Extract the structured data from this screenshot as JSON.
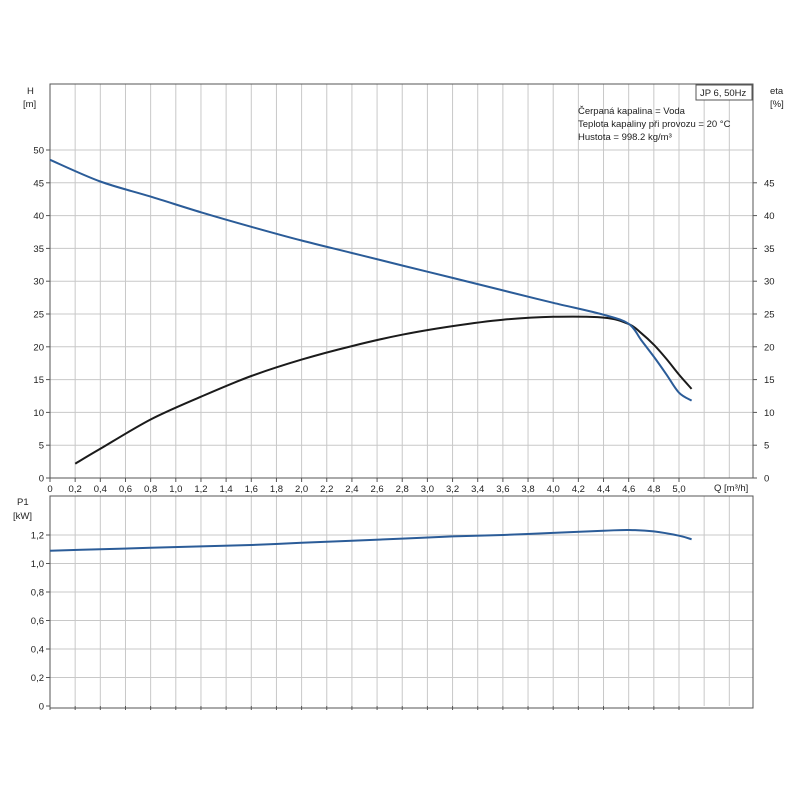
{
  "colors": {
    "head_curve": "#2b5c98",
    "eta_curve": "#1b1b1b",
    "power_curve": "#2b5c98",
    "grid": "#c8c8c8",
    "frame": "#555555"
  },
  "chart_data": [
    {
      "type": "line",
      "ylabel": "H",
      "ylabel_unit": "[m]",
      "y2label": "eta",
      "y2label_unit": "[%]",
      "xlabel": "Q [m³/h]",
      "xlim": [
        0,
        5.6
      ],
      "ylim": [
        0,
        50
      ],
      "y2lim": [
        0,
        45
      ],
      "x_ticks": [
        "0",
        "0,2",
        "0,4",
        "0,6",
        "0,8",
        "1,0",
        "1,2",
        "1,4",
        "1,6",
        "1,8",
        "2,0",
        "2,2",
        "2,4",
        "2,6",
        "2,8",
        "3,0",
        "3,2",
        "3,4",
        "3,6",
        "3,8",
        "4,0",
        "4,2",
        "4,4",
        "4,6",
        "4,8",
        "5,0"
      ],
      "y_ticks": [
        "0",
        "5",
        "10",
        "15",
        "20",
        "25",
        "30",
        "35",
        "40",
        "45",
        "50"
      ],
      "y2_ticks": [
        "0",
        "5",
        "10",
        "15",
        "20",
        "25",
        "30",
        "35",
        "40",
        "45"
      ],
      "grid": true,
      "legend": {
        "title": "JP 6, 50Hz",
        "lines": [
          "Čerpaná kapalina = Voda",
          "Teplota kapaliny při provozu = 20 °C",
          "Hustota = 998.2 kg/m³"
        ],
        "placement": "top-right"
      },
      "series": [
        {
          "key": "head",
          "axis": "left",
          "x": [
            0,
            0.4,
            0.8,
            1.2,
            1.6,
            2.0,
            2.4,
            2.8,
            3.2,
            3.6,
            4.0,
            4.4,
            4.6,
            4.7,
            4.8,
            4.9,
            5.0,
            5.1
          ],
          "values": [
            48.5,
            45.2,
            42.9,
            40.5,
            38.3,
            36.2,
            34.3,
            32.4,
            30.5,
            28.6,
            26.7,
            24.9,
            23.5,
            21.0,
            18.5,
            15.8,
            13.0,
            11.8
          ]
        },
        {
          "key": "eta",
          "axis": "right",
          "x": [
            0.2,
            0.4,
            0.8,
            1.2,
            1.6,
            2.0,
            2.4,
            2.8,
            3.2,
            3.6,
            4.0,
            4.4,
            4.6,
            4.7,
            4.8,
            4.9,
            5.0,
            5.1
          ],
          "values": [
            2.0,
            4.1,
            8.2,
            11.4,
            14.3,
            16.6,
            18.5,
            20.1,
            21.3,
            22.2,
            22.6,
            22.5,
            21.6,
            20.3,
            18.7,
            16.7,
            14.5,
            12.5
          ]
        }
      ]
    },
    {
      "type": "line",
      "ylabel": "P1",
      "ylabel_unit": "[kW]",
      "xlim": [
        0,
        5.6
      ],
      "ylim": [
        0,
        1.4
      ],
      "y_ticks": [
        "0",
        "0,2",
        "0,4",
        "0,6",
        "0,8",
        "1,0",
        "1,2"
      ],
      "grid": true,
      "series": [
        {
          "key": "power",
          "x": [
            0,
            0.4,
            0.8,
            1.2,
            1.6,
            2.0,
            2.4,
            2.8,
            3.2,
            3.6,
            4.0,
            4.4,
            4.6,
            4.8,
            5.0,
            5.1
          ],
          "values": [
            1.09,
            1.1,
            1.11,
            1.12,
            1.13,
            1.145,
            1.16,
            1.175,
            1.19,
            1.2,
            1.215,
            1.23,
            1.235,
            1.225,
            1.195,
            1.17
          ]
        }
      ]
    }
  ]
}
